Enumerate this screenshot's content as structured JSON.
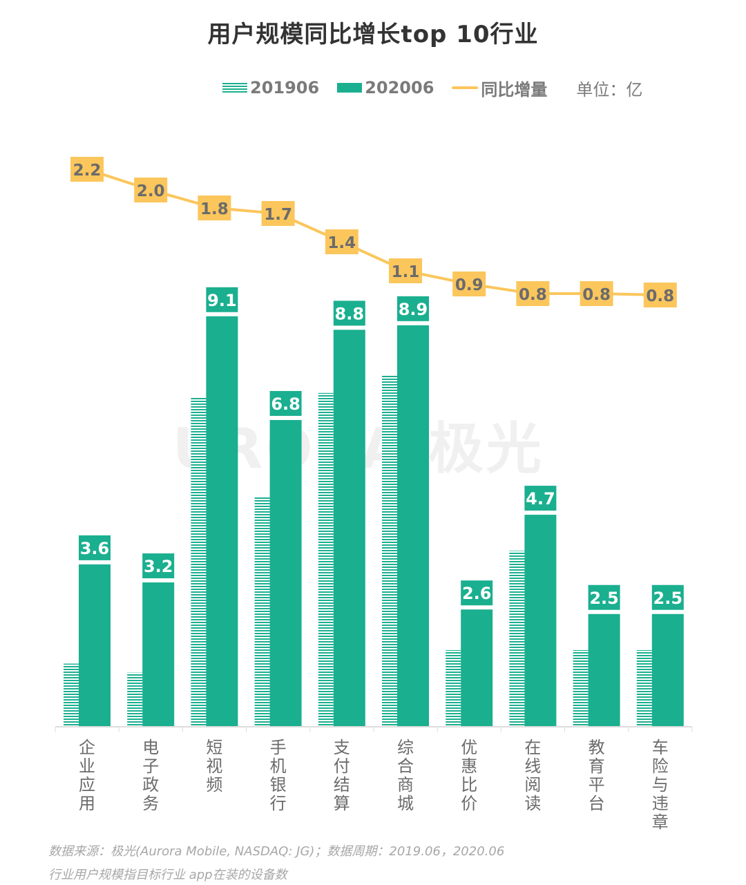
{
  "chart_data": {
    "type": "bar",
    "title": "用户规模同比增长top 10行业",
    "unit_label": "单位：亿",
    "xlabel": "",
    "ylabel": "",
    "legend_position": "top",
    "grid": false,
    "categories": [
      "企业应用",
      "电子政务",
      "短视频",
      "手机银行",
      "支付结算",
      "综合商城",
      "优惠比价",
      "在线阅读",
      "教育平台",
      "车险与违章"
    ],
    "series": [
      {
        "name": "201906",
        "type": "bar",
        "style": "hatched",
        "color": "#1aaf8f",
        "values": [
          1.4,
          1.2,
          7.3,
          5.1,
          7.4,
          7.8,
          1.7,
          3.9,
          1.7,
          1.7
        ]
      },
      {
        "name": "202006",
        "type": "bar",
        "style": "solid",
        "color": "#1aaf8f",
        "values": [
          3.6,
          3.2,
          9.1,
          6.8,
          8.8,
          8.9,
          2.6,
          4.7,
          2.5,
          2.5
        ]
      },
      {
        "name": "同比增量",
        "type": "line",
        "color": "#fbc65c",
        "values": [
          2.2,
          2.0,
          1.8,
          1.7,
          1.4,
          1.1,
          0.9,
          0.8,
          0.8,
          0.8
        ]
      }
    ],
    "labels_202006": [
      "3.6",
      "3.2",
      "9.1",
      "6.8",
      "8.8",
      "8.9",
      "2.6",
      "4.7",
      "2.5",
      "2.5"
    ],
    "labels_increase": [
      "2.2",
      "2.0",
      "1.8",
      "1.7",
      "1.4",
      "1.1",
      "0.9",
      "0.8",
      "0.8",
      "0.8"
    ]
  },
  "legend": {
    "series1": "201906",
    "series2": "202006",
    "series3": "同比增量",
    "unit": "单位：亿"
  },
  "watermark": "URORA 极光",
  "footer": {
    "source": "数据来源：极光(Aurora Mobile, NASDAQ: JG)；数据周期：2019.06，2020.06",
    "note": "行业用户规模指目标行业 app在装的设备数"
  },
  "colors": {
    "bar": "#1aaf8f",
    "line": "#fbc65c",
    "line_label_text": "#6b6b6b",
    "axis_text": "#6b6b6b"
  }
}
